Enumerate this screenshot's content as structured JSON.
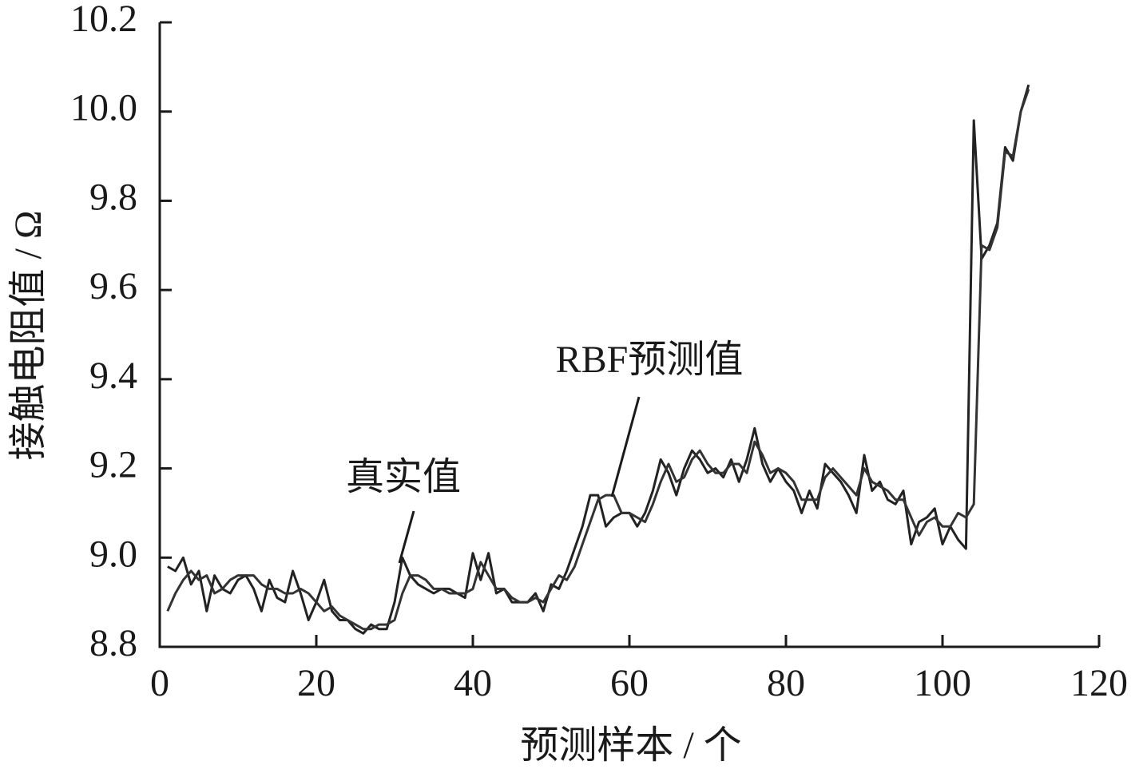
{
  "chart_data": {
    "type": "line",
    "xlabel": "预测样本 / 个",
    "ylabel": "接触电阻值 / Ω",
    "xlim": [
      0,
      120
    ],
    "xticks": [
      0,
      20,
      40,
      60,
      80,
      100,
      120
    ],
    "ylim": [
      8.8,
      10.2
    ],
    "yticks": [
      8.8,
      {
        "value": 9,
        "label": "9.0"
      },
      9.2,
      9.4,
      9.6,
      9.8,
      {
        "value": 10,
        "label": "10.0"
      },
      10.2
    ],
    "grid": false,
    "x": [
      1,
      2,
      3,
      4,
      5,
      6,
      7,
      8,
      9,
      10,
      11,
      12,
      13,
      14,
      15,
      16,
      17,
      18,
      19,
      20,
      21,
      22,
      23,
      24,
      25,
      26,
      27,
      28,
      29,
      30,
      31,
      32,
      33,
      34,
      35,
      36,
      37,
      38,
      39,
      40,
      41,
      42,
      43,
      44,
      45,
      46,
      47,
      48,
      49,
      50,
      51,
      52,
      53,
      54,
      55,
      56,
      57,
      58,
      59,
      60,
      61,
      62,
      63,
      64,
      65,
      66,
      67,
      68,
      69,
      70,
      71,
      72,
      73,
      74,
      75,
      76,
      77,
      78,
      79,
      80,
      81,
      82,
      83,
      84,
      85,
      86,
      87,
      88,
      89,
      90,
      91,
      92,
      93,
      94,
      95,
      96,
      97,
      98,
      99,
      100,
      101,
      102,
      103,
      104,
      105,
      106,
      107,
      108,
      109,
      110,
      111
    ],
    "series": [
      {
        "name": "真实值",
        "color": "#222222",
        "values": [
          8.98,
          8.97,
          9.0,
          8.94,
          8.97,
          8.88,
          8.96,
          8.93,
          8.92,
          8.95,
          8.96,
          8.93,
          8.88,
          8.95,
          8.91,
          8.9,
          8.97,
          8.92,
          8.86,
          8.9,
          8.95,
          8.88,
          8.86,
          8.86,
          8.84,
          8.83,
          8.85,
          8.84,
          8.84,
          8.9,
          9.0,
          8.96,
          8.94,
          8.93,
          8.92,
          8.93,
          8.93,
          8.92,
          8.91,
          9.01,
          8.95,
          9.01,
          8.92,
          8.93,
          8.9,
          8.9,
          8.9,
          8.92,
          8.88,
          8.94,
          8.93,
          8.97,
          9.02,
          9.07,
          9.14,
          9.14,
          9.07,
          9.09,
          9.1,
          9.1,
          9.07,
          9.1,
          9.15,
          9.22,
          9.19,
          9.14,
          9.2,
          9.24,
          9.22,
          9.19,
          9.2,
          9.18,
          9.22,
          9.17,
          9.22,
          9.29,
          9.21,
          9.17,
          9.2,
          9.17,
          9.15,
          9.1,
          9.15,
          9.11,
          9.21,
          9.19,
          9.17,
          9.14,
          9.1,
          9.23,
          9.15,
          9.17,
          9.13,
          9.12,
          9.15,
          9.03,
          9.08,
          9.09,
          9.11,
          9.03,
          9.07,
          9.04,
          9.02,
          9.98,
          9.67,
          9.7,
          9.75,
          9.92,
          9.89,
          10.0,
          10.06
        ]
      },
      {
        "name": "RBF预测值",
        "color": "#333333",
        "values": [
          8.88,
          8.92,
          8.95,
          8.97,
          8.95,
          8.96,
          8.92,
          8.93,
          8.95,
          8.96,
          8.96,
          8.96,
          8.94,
          8.93,
          8.93,
          8.92,
          8.92,
          8.93,
          8.92,
          8.9,
          8.88,
          8.89,
          8.87,
          8.86,
          8.85,
          8.84,
          8.84,
          8.85,
          8.85,
          8.86,
          8.92,
          8.96,
          8.96,
          8.95,
          8.93,
          8.93,
          8.92,
          8.92,
          8.92,
          8.93,
          8.99,
          8.96,
          8.93,
          8.93,
          8.91,
          8.9,
          8.9,
          8.91,
          8.9,
          8.93,
          8.96,
          8.95,
          8.98,
          9.03,
          9.08,
          9.13,
          9.14,
          9.14,
          9.1,
          9.1,
          9.09,
          9.08,
          9.12,
          9.17,
          9.21,
          9.17,
          9.18,
          9.22,
          9.24,
          9.21,
          9.19,
          9.19,
          9.21,
          9.21,
          9.19,
          9.26,
          9.23,
          9.19,
          9.2,
          9.19,
          9.17,
          9.13,
          9.13,
          9.13,
          9.18,
          9.2,
          9.18,
          9.16,
          9.14,
          9.2,
          9.17,
          9.16,
          9.15,
          9.13,
          9.13,
          9.09,
          9.05,
          9.08,
          9.09,
          9.07,
          9.07,
          9.1,
          9.09,
          9.12,
          9.7,
          9.69,
          9.74,
          9.91,
          9.9,
          10.0,
          10.05
        ]
      }
    ]
  }
}
